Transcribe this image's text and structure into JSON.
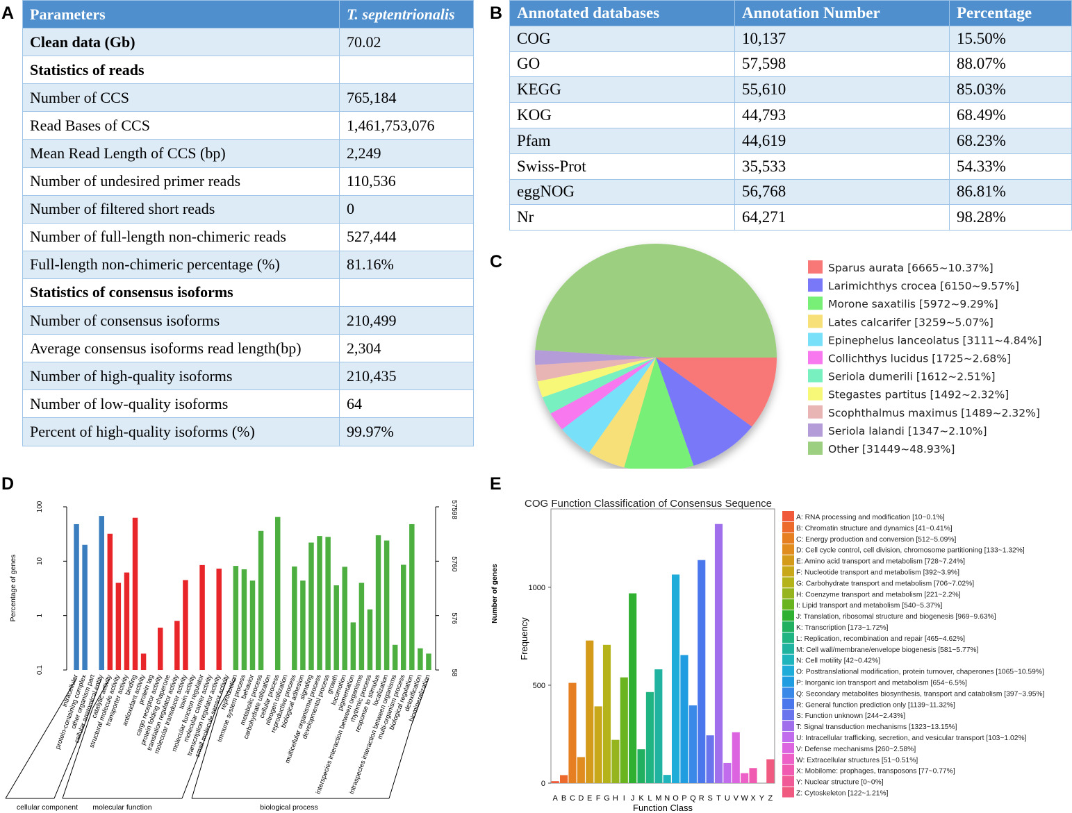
{
  "panel_labels": {
    "a": "A",
    "b": "B",
    "c": "C",
    "d": "D",
    "e": "E"
  },
  "table_a": {
    "headers": [
      "Parameters",
      "T. septentrionalis"
    ],
    "rows": [
      {
        "label": "Clean data (Gb)",
        "value": "70.02",
        "section": true
      },
      {
        "label": "Statistics of reads",
        "value": "",
        "section": true
      },
      {
        "label": "Number of CCS",
        "value": "765,184"
      },
      {
        "label": "Read Bases of CCS",
        "value": "1,461,753,076"
      },
      {
        "label": "Mean Read Length of CCS (bp)",
        "value": "2,249"
      },
      {
        "label": "Number of undesired primer reads",
        "value": "110,536"
      },
      {
        "label": "Number of filtered short reads",
        "value": "0"
      },
      {
        "label": "Number of full-length non-chimeric reads",
        "value": "527,444"
      },
      {
        "label": "Full-length non-chimeric percentage (%)",
        "value": "81.16%"
      },
      {
        "label": "Statistics of consensus isoforms",
        "value": "",
        "section": true
      },
      {
        "label": "Number of consensus isoforms",
        "value": "210,499"
      },
      {
        "label": "Average consensus isoforms read length(bp)",
        "value": "2,304"
      },
      {
        "label": "Number of high-quality isoforms",
        "value": "210,435"
      },
      {
        "label": "Number of low-quality isoforms",
        "value": "64"
      },
      {
        "label": "Percent of high-quality isoforms (%)",
        "value": "99.97%"
      }
    ]
  },
  "table_b": {
    "headers": [
      "Annotated databases",
      "Annotation Number",
      "Percentage"
    ],
    "rows": [
      [
        "COG",
        "10,137",
        "15.50%"
      ],
      [
        "GO",
        "57,598",
        "88.07%"
      ],
      [
        "KEGG",
        "55,610",
        "85.03%"
      ],
      [
        "KOG",
        "44,793",
        "68.49%"
      ],
      [
        "Pfam",
        "44,619",
        "68.23%"
      ],
      [
        "Swiss-Prot",
        "35,533",
        "54.33%"
      ],
      [
        "eggNOG",
        "56,768",
        "86.81%"
      ],
      [
        "Nr",
        "64,271",
        "98.28%"
      ]
    ]
  },
  "chart_data": [
    {
      "type": "pie",
      "title": "",
      "slices": [
        {
          "label": "Sparus aurata [6665~10.37%]",
          "value": 10.37,
          "color": "#f87878"
        },
        {
          "label": "Larimichthys crocea [6150~9.57%]",
          "value": 9.57,
          "color": "#7878f8"
        },
        {
          "label": "Morone saxatilis [5972~9.29%]",
          "value": 9.29,
          "color": "#78f078"
        },
        {
          "label": "Lates calcarifer [3259~5.07%]",
          "value": 5.07,
          "color": "#f8e078"
        },
        {
          "label": "Epinephelus lanceolatus [3111~4.84%]",
          "value": 4.84,
          "color": "#78e0f8"
        },
        {
          "label": "Collichthys lucidus [1725~2.68%]",
          "value": 2.68,
          "color": "#f878f0"
        },
        {
          "label": "Seriola dumerili [1612~2.51%]",
          "value": 2.51,
          "color": "#78f0c0"
        },
        {
          "label": "Stegastes partitus [1492~2.32%]",
          "value": 2.32,
          "color": "#f8f878"
        },
        {
          "label": "Scophthalmus maximus [1489~2.32%]",
          "value": 2.32,
          "color": "#e8b4b4"
        },
        {
          "label": "Seriola lalandi [1347~2.10%]",
          "value": 2.1,
          "color": "#b49cd8"
        },
        {
          "label": "Other [31449~48.93%]",
          "value": 48.93,
          "color": "#9cd080"
        }
      ]
    },
    {
      "type": "bar",
      "title": "",
      "ylabel": "Percentage of genes",
      "y_scale": "log",
      "ylim": [
        0.1,
        100
      ],
      "y_ticks": [
        "100",
        "10",
        "1",
        "0.1"
      ],
      "right_ticks": [
        "57598",
        "5760",
        "576",
        "58"
      ],
      "groups": [
        {
          "name": "cellular component",
          "color": "#3a7ebf"
        },
        {
          "name": "molecular function",
          "color": "#e8262a"
        },
        {
          "name": "biological process",
          "color": "#4caf3f"
        }
      ],
      "categories": [
        {
          "label": "intracellular",
          "group": 0,
          "value": 48
        },
        {
          "label": "protein-containing complex",
          "group": 0,
          "value": 20
        },
        {
          "label": "other organism part",
          "group": 0,
          "value": 0
        },
        {
          "label": "cellular anatomical entity",
          "group": 0,
          "value": 68
        },
        {
          "label": "catalytic activity",
          "group": 1,
          "value": 32
        },
        {
          "label": "structural molecule activity",
          "group": 1,
          "value": 4.0
        },
        {
          "label": "transporter activity",
          "group": 1,
          "value": 6.2
        },
        {
          "label": "binding",
          "group": 1,
          "value": 63
        },
        {
          "label": "antioxidant activity",
          "group": 1,
          "value": 0.2
        },
        {
          "label": "protein tag",
          "group": 1,
          "value": 0
        },
        {
          "label": "cargo receptor activity",
          "group": 1,
          "value": 0.6
        },
        {
          "label": "protein folding chaperone",
          "group": 1,
          "value": 0
        },
        {
          "label": "translation regulator activity",
          "group": 1,
          "value": 0.8
        },
        {
          "label": "molecular transducer activity",
          "group": 1,
          "value": 4.5
        },
        {
          "label": "toxin activity",
          "group": 1,
          "value": 0
        },
        {
          "label": "molecular function regulator",
          "group": 1,
          "value": 8.5
        },
        {
          "label": "molecular carrier activity",
          "group": 1,
          "value": 0
        },
        {
          "label": "transcription regulator activity",
          "group": 1,
          "value": 7.3
        },
        {
          "label": "small molecule sensor activity",
          "group": 1,
          "value": 0
        },
        {
          "label": "reproduction",
          "group": 2,
          "value": 8.2
        },
        {
          "label": "immune system process",
          "group": 2,
          "value": 7.1
        },
        {
          "label": "behavior",
          "group": 2,
          "value": 4.4
        },
        {
          "label": "metabolic process",
          "group": 2,
          "value": 36
        },
        {
          "label": "carbohydrate utilization",
          "group": 2,
          "value": 0
        },
        {
          "label": "cellular process",
          "group": 2,
          "value": 65
        },
        {
          "label": "nitrogen utilization",
          "group": 2,
          "value": 0
        },
        {
          "label": "reproductive process",
          "group": 2,
          "value": 8.0
        },
        {
          "label": "biological adhesion",
          "group": 2,
          "value": 4.4
        },
        {
          "label": "signaling",
          "group": 2,
          "value": 22
        },
        {
          "label": "multicellular organismal process",
          "group": 2,
          "value": 29
        },
        {
          "label": "developmental process",
          "group": 2,
          "value": 28
        },
        {
          "label": "growth",
          "group": 2,
          "value": 3.6
        },
        {
          "label": "locomotion",
          "group": 2,
          "value": 7.9
        },
        {
          "label": "pigmentation",
          "group": 2,
          "value": 0.75
        },
        {
          "label": "interspecies interaction between organisms",
          "group": 2,
          "value": 4.0
        },
        {
          "label": "rhythmic process",
          "group": 2,
          "value": 1.3
        },
        {
          "label": "response to stimulus",
          "group": 2,
          "value": 30
        },
        {
          "label": "localization",
          "group": 2,
          "value": 24
        },
        {
          "label": "intraspecies interaction between organisms",
          "group": 2,
          "value": 0.29
        },
        {
          "label": "multi-organism process",
          "group": 2,
          "value": 8.6
        },
        {
          "label": "biological regulation",
          "group": 2,
          "value": 48
        },
        {
          "label": "detoxification",
          "group": 2,
          "value": 0.25
        },
        {
          "label": "biomineralization",
          "group": 2,
          "value": 0.2
        }
      ]
    },
    {
      "type": "bar",
      "title": "COG Function Classification of Consensus Sequence",
      "xlabel": "Function Class",
      "ylabel": "Frequency",
      "right_ylabel": "Number of genes",
      "ylim": [
        0,
        1400
      ],
      "y_ticks": [
        0,
        500,
        1000
      ],
      "categories": [
        "A",
        "B",
        "C",
        "D",
        "E",
        "F",
        "G",
        "H",
        "I",
        "J",
        "K",
        "L",
        "M",
        "N",
        "O",
        "P",
        "Q",
        "R",
        "S",
        "T",
        "U",
        "V",
        "W",
        "X",
        "Y",
        "Z"
      ],
      "values": [
        10,
        41,
        512,
        133,
        728,
        392,
        706,
        221,
        540,
        969,
        173,
        465,
        581,
        42,
        1065,
        654,
        397,
        1139,
        244,
        1323,
        103,
        260,
        51,
        77,
        0,
        122
      ],
      "colors": [
        "#f05a3a",
        "#ec6a2c",
        "#e67e22",
        "#e08c1e",
        "#d49a1a",
        "#c8a818",
        "#b4b41a",
        "#96b41e",
        "#6ab420",
        "#30b030",
        "#20b060",
        "#20b482",
        "#20b4a0",
        "#20b4bc",
        "#20acd8",
        "#209ce0",
        "#3a88e8",
        "#4a78ec",
        "#6a74ec",
        "#a070ec",
        "#c06cec",
        "#dc64e0",
        "#ec60c8",
        "#f05ab0",
        "#f05a96",
        "#f05a80"
      ],
      "legend": [
        "A: RNA processing and modification [10~0.1%]",
        "B: Chromatin structure and dynamics [41~0.41%]",
        "C: Energy production and conversion [512~5.09%]",
        "D: Cell cycle control, cell division, chromosome partitioning [133~1.32%]",
        "E: Amino acid transport and metabolism [728~7.24%]",
        "F: Nucleotide transport and metabolism [392~3.9%]",
        "G: Carbohydrate transport and metabolism [706~7.02%]",
        "H: Coenzyme transport and metabolism [221~2.2%]",
        "I: Lipid transport and metabolism [540~5.37%]",
        "J: Translation, ribosomal structure and biogenesis [969~9.63%]",
        "K: Transcription [173~1.72%]",
        "L: Replication, recombination and repair [465~4.62%]",
        "M: Cell wall/membrane/envelope biogenesis [581~5.77%]",
        "N: Cell motility [42~0.42%]",
        "O: Posttranslational modification, protein turnover, chaperones [1065~10.59%]",
        "P: Inorganic ion transport and metabolism [654~6.5%]",
        "Q: Secondary metabolites biosynthesis, transport and catabolism [397~3.95%]",
        "R: General function prediction only [1139~11.32%]",
        "S: Function unknown [244~2.43%]",
        "T: Signal transduction mechanisms [1323~13.15%]",
        "U: Intracellular trafficking, secretion, and vesicular transport [103~1.02%]",
        "V: Defense mechanisms [260~2.58%]",
        "W: Extracellular structures [51~0.51%]",
        "X: Mobilome: prophages, transposons [77~0.77%]",
        "Y: Nuclear structure [0~0%]",
        "Z: Cytoskeleton [122~1.21%]"
      ]
    }
  ]
}
